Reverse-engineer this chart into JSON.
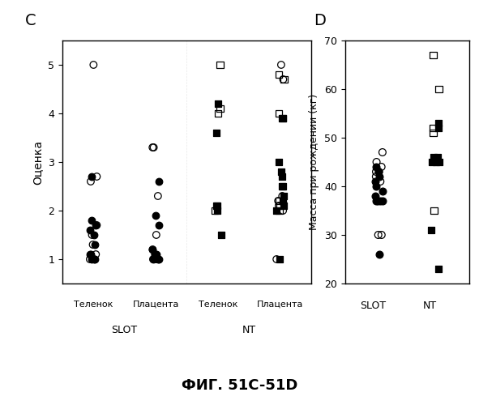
{
  "panel_C": {
    "title": "C",
    "ylabel": "Оценка",
    "ylim": [
      0.5,
      5.5
    ],
    "yticks": [
      1,
      2,
      3,
      4,
      5
    ],
    "open_circles": {
      "SLOT_Telenok": [
        5.0,
        2.7,
        2.6,
        1.7,
        1.5,
        1.3,
        1.1,
        1.0,
        1.0,
        1.0
      ],
      "SLOT_Placenta": [
        3.3,
        3.3,
        2.3,
        1.5,
        1.2,
        1.1,
        1.0,
        1.0,
        1.0
      ],
      "NT_Placenta": [
        5.0,
        4.7,
        2.3,
        2.2,
        2.1,
        2.0,
        1.0
      ]
    },
    "filled_circles": {
      "SLOT_Telenok": [
        2.7,
        1.8,
        1.7,
        1.6,
        1.5,
        1.3,
        1.1,
        1.1,
        1.0,
        1.0,
        1.0
      ],
      "SLOT_Placenta": [
        2.6,
        1.9,
        1.7,
        1.2,
        1.1,
        1.1,
        1.0,
        1.0,
        1.0
      ]
    },
    "open_squares": {
      "NT_Telenok": [
        5.0,
        4.1,
        4.0,
        2.1,
        2.0
      ],
      "NT_Placenta": [
        4.8,
        4.7,
        4.0,
        3.9,
        2.5,
        2.2,
        2.1,
        2.0
      ]
    },
    "filled_squares": {
      "NT_Telenok": [
        4.2,
        3.6,
        2.1,
        2.0,
        1.5
      ],
      "NT_Placenta": [
        3.9,
        3.0,
        2.8,
        2.7,
        2.5,
        2.3,
        2.2,
        2.1,
        2.0,
        1.0
      ]
    }
  },
  "panel_D": {
    "title": "D",
    "ylabel": "Масса при рождении (кг)",
    "ylim": [
      20,
      70
    ],
    "yticks": [
      20,
      30,
      40,
      50,
      60,
      70
    ],
    "open_circles_SLOT": [
      47,
      45,
      44,
      43,
      43,
      42,
      41,
      30,
      30
    ],
    "filled_circles_SLOT": [
      44,
      43,
      42,
      41,
      40,
      39,
      38,
      37,
      37,
      37,
      37,
      26
    ],
    "open_squares_NT": [
      67,
      60,
      52,
      51,
      35
    ],
    "filled_squares_NT": [
      53,
      52,
      46,
      46,
      45,
      45,
      45,
      31,
      23
    ]
  },
  "figure_label": "ФИГ. 51C-51D",
  "bg_color": "#ffffff"
}
